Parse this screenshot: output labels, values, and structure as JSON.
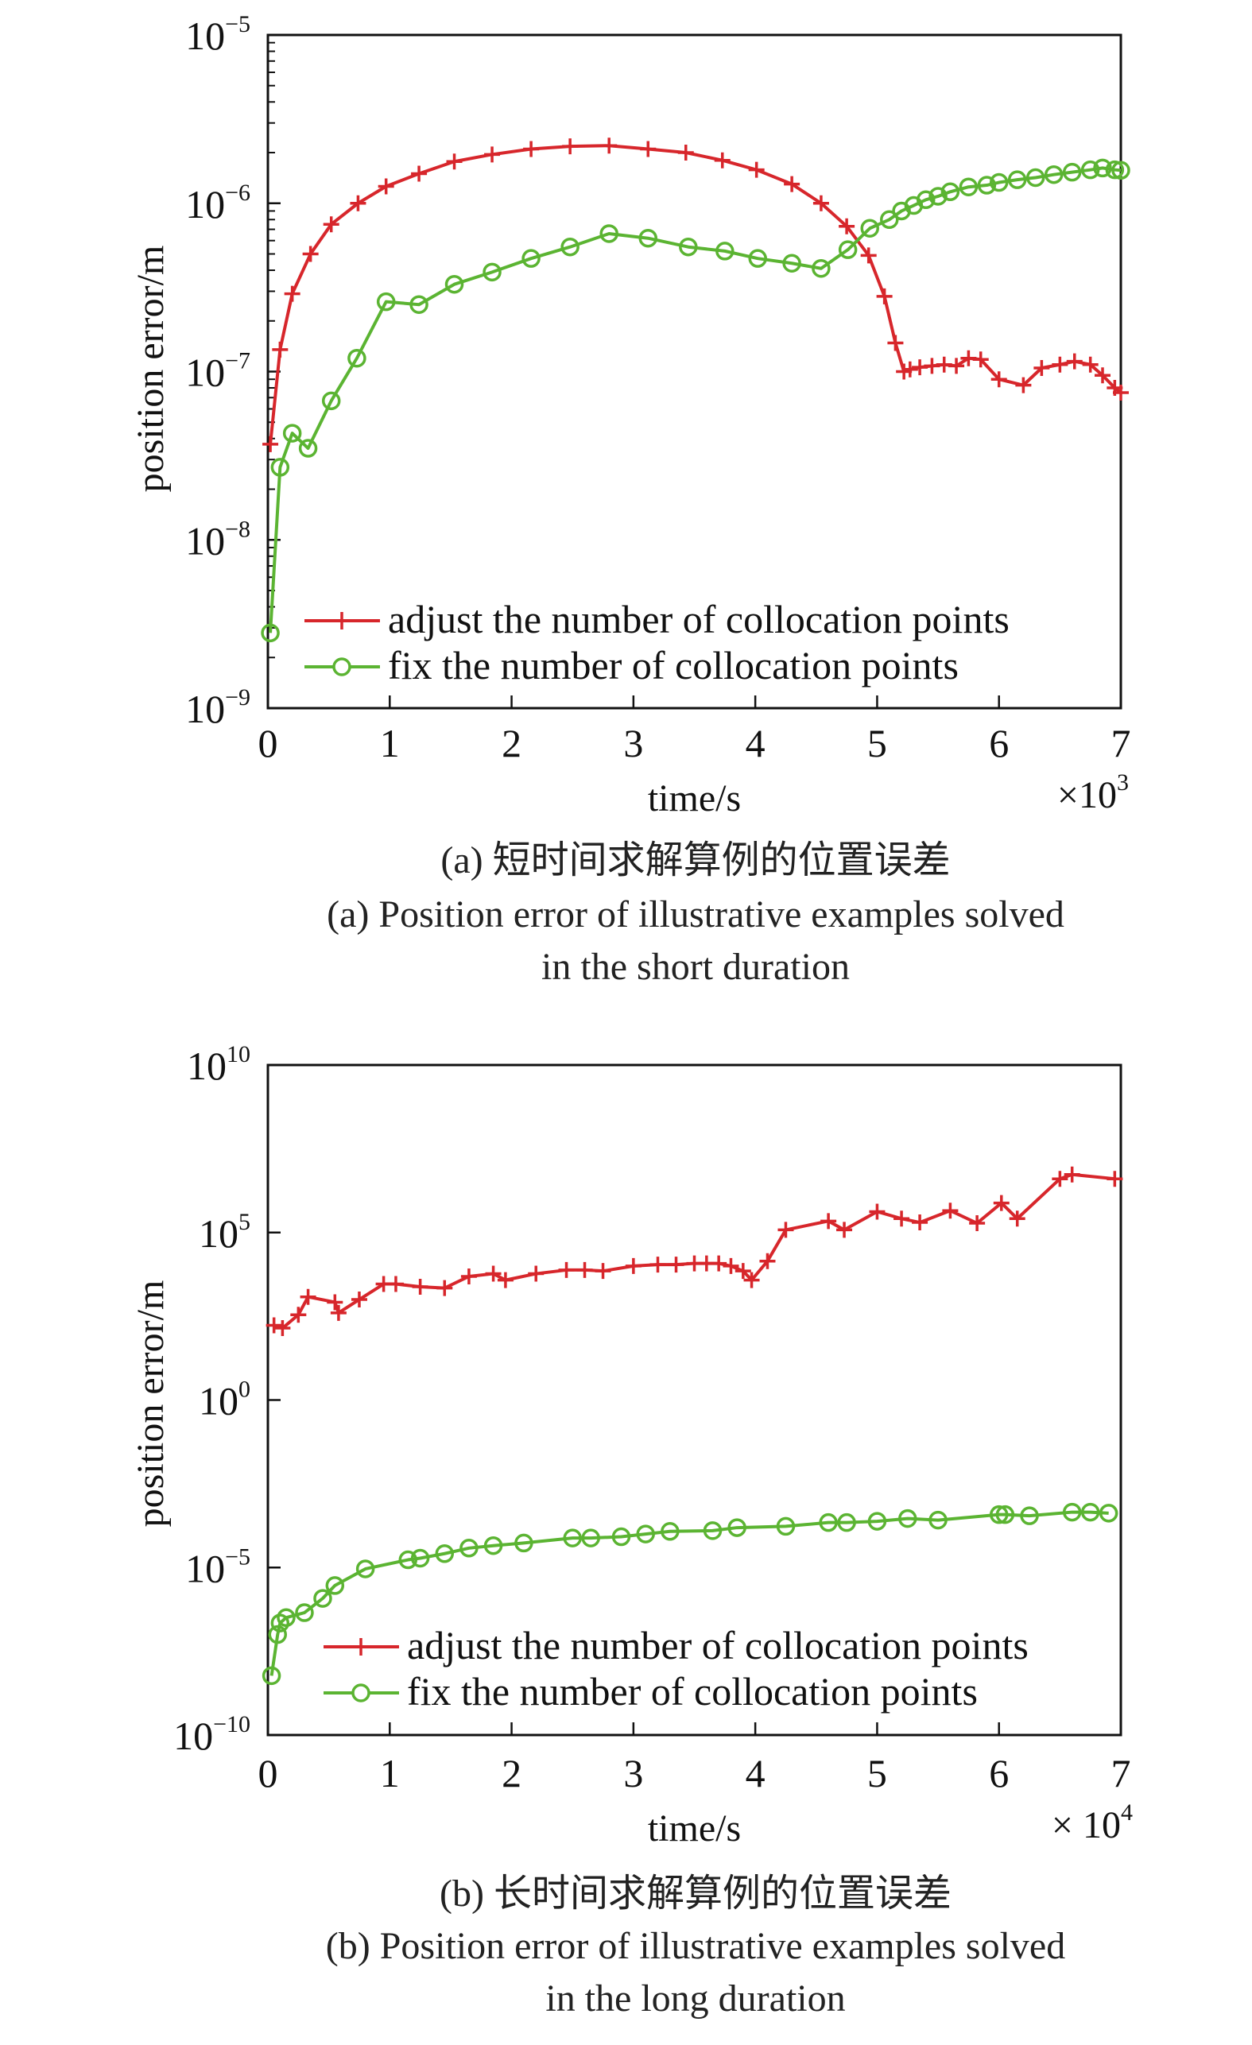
{
  "chart_data": [
    {
      "type": "line",
      "xlabel": "time/s",
      "x_multiplier": {
        "base": "×10",
        "exp": "3"
      },
      "ylabel": "position error/m",
      "yscale": "log",
      "xlim": [
        0,
        7
      ],
      "ylim": [
        1e-09,
        1e-05
      ],
      "grid": false,
      "legend_position": "bottom-left",
      "x_ticks": [
        "0",
        "1",
        "2",
        "3",
        "4",
        "5",
        "6",
        "7"
      ],
      "y_ticks": [
        {
          "base": "10",
          "exp": "−9",
          "v": 1e-09
        },
        {
          "base": "10",
          "exp": "−8",
          "v": 1e-08
        },
        {
          "base": "10",
          "exp": "−7",
          "v": 1e-07
        },
        {
          "base": "10",
          "exp": "−6",
          "v": 1e-06
        },
        {
          "base": "10",
          "exp": "−5",
          "v": 1e-05
        }
      ],
      "caption_cn": "(a) 短时间求解算例的位置误差",
      "caption_en": [
        "(a) Position error of illustrative examples solved",
        "in the short duration"
      ],
      "series": [
        {
          "name": "adjust the number of collocation points",
          "color": "#d7262b",
          "marker": "plus",
          "x": [
            0.02,
            0.1,
            0.2,
            0.35,
            0.52,
            0.74,
            0.97,
            1.24,
            1.53,
            1.84,
            2.16,
            2.48,
            2.8,
            3.12,
            3.43,
            3.73,
            4.01,
            4.3,
            4.54,
            4.75,
            4.93,
            5.06,
            5.15,
            5.22,
            5.27,
            5.35,
            5.45,
            5.55,
            5.65,
            5.75,
            5.85,
            6.0,
            6.2,
            6.35,
            6.5,
            6.62,
            6.75,
            6.85,
            6.95,
            7.0
          ],
          "y": [
            3.7e-08,
            1.35e-07,
            2.9e-07,
            5e-07,
            7.5e-07,
            1e-06,
            1.26e-06,
            1.5e-06,
            1.77e-06,
            1.95e-06,
            2.1e-06,
            2.18e-06,
            2.2e-06,
            2.1e-06,
            2e-06,
            1.8e-06,
            1.58e-06,
            1.3e-06,
            1e-06,
            7.3e-07,
            4.9e-07,
            2.8e-07,
            1.48e-07,
            1e-07,
            1.03e-07,
            1.06e-07,
            1.08e-07,
            1.1e-07,
            1.08e-07,
            1.2e-07,
            1.18e-07,
            9e-08,
            8.3e-08,
            1.05e-07,
            1.1e-07,
            1.15e-07,
            1.1e-07,
            9.5e-08,
            8e-08,
            7.5e-08
          ]
        },
        {
          "name": "fix the number of collocation points",
          "color": "#5bb432",
          "marker": "circle",
          "x": [
            0.02,
            0.1,
            0.2,
            0.33,
            0.52,
            0.73,
            0.97,
            1.24,
            1.53,
            1.84,
            2.16,
            2.48,
            2.8,
            3.12,
            3.45,
            3.75,
            4.02,
            4.3,
            4.54,
            4.76,
            4.94,
            5.1,
            5.2,
            5.3,
            5.4,
            5.5,
            5.6,
            5.75,
            5.9,
            6.0,
            6.15,
            6.3,
            6.45,
            6.6,
            6.75,
            6.85,
            6.95,
            7.0
          ],
          "y": [
            2.8e-09,
            2.7e-08,
            4.3e-08,
            3.5e-08,
            6.7e-08,
            1.2e-07,
            2.6e-07,
            2.5e-07,
            3.3e-07,
            3.9e-07,
            4.7e-07,
            5.5e-07,
            6.6e-07,
            6.2e-07,
            5.5e-07,
            5.2e-07,
            4.7e-07,
            4.4e-07,
            4.1e-07,
            5.3e-07,
            7.1e-07,
            8e-07,
            9e-07,
            9.7e-07,
            1.05e-06,
            1.1e-06,
            1.17e-06,
            1.25e-06,
            1.28e-06,
            1.33e-06,
            1.38e-06,
            1.42e-06,
            1.48e-06,
            1.53e-06,
            1.58e-06,
            1.62e-06,
            1.58e-06,
            1.57e-06
          ]
        }
      ]
    },
    {
      "type": "line",
      "xlabel": "time/s",
      "x_multiplier": {
        "base": "× 10",
        "exp": "4"
      },
      "ylabel": "position error/m",
      "yscale": "log",
      "xlim": [
        0,
        7
      ],
      "ylim": [
        1e-10,
        10000000000.0
      ],
      "grid": false,
      "legend_position": "bottom-left",
      "x_ticks": [
        "0",
        "1",
        "2",
        "3",
        "4",
        "5",
        "6",
        "7"
      ],
      "y_ticks": [
        {
          "base": "10",
          "exp": "−10",
          "v": 1e-10
        },
        {
          "base": "10",
          "exp": "−5",
          "v": 1e-05
        },
        {
          "base": "10",
          "exp": "0",
          "v": 1
        },
        {
          "base": "10",
          "exp": "5",
          "v": 100000.0
        },
        {
          "base": "10",
          "exp": "10",
          "v": 10000000000.0
        }
      ],
      "caption_cn": "(b) 长时间求解算例的位置误差",
      "caption_en": [
        "(b) Position error of illustrative examples solved",
        "in the long duration"
      ],
      "series": [
        {
          "name": "adjust the number of collocation points",
          "color": "#d7262b",
          "marker": "plus",
          "x": [
            0.05,
            0.12,
            0.25,
            0.33,
            0.55,
            0.58,
            0.75,
            0.95,
            1.05,
            1.25,
            1.45,
            1.65,
            1.85,
            1.95,
            2.2,
            2.45,
            2.6,
            2.75,
            3.0,
            3.2,
            3.35,
            3.5,
            3.6,
            3.7,
            3.8,
            3.9,
            3.97,
            4.1,
            4.25,
            4.6,
            4.73,
            5.0,
            5.2,
            5.35,
            5.6,
            5.82,
            6.02,
            6.15,
            6.5,
            6.6,
            6.95
          ],
          "y": [
            170.0,
            140.0,
            350.0,
            1200.0,
            830.0,
            400.0,
            1000.0,
            2900.0,
            2900.0,
            2400.0,
            2200.0,
            4900.0,
            5900.0,
            3800.0,
            5900.0,
            7600.0,
            7600.0,
            7100.0,
            10000.0,
            11000.0,
            11000.0,
            12000.0,
            12000.0,
            12000.0,
            10000.0,
            7100.0,
            3800.0,
            14000.0,
            120000.0,
            220000.0,
            120000.0,
            420000.0,
            260000.0,
            200000.0,
            450000.0,
            190000.0,
            760000.0,
            260000.0,
            4000000.0,
            5400000.0,
            4000000.0
          ]
        },
        {
          "name": "fix the number of collocation points",
          "color": "#5bb432",
          "marker": "circle",
          "x": [
            0.03,
            0.08,
            0.1,
            0.15,
            0.3,
            0.45,
            0.55,
            0.8,
            1.15,
            1.25,
            1.45,
            1.65,
            1.85,
            2.1,
            2.5,
            2.65,
            2.9,
            3.1,
            3.3,
            3.65,
            3.85,
            4.25,
            4.6,
            4.75,
            5.0,
            5.25,
            5.5,
            6.0,
            6.05,
            6.25,
            6.6,
            6.75,
            6.9
          ],
          "y": [
            5.9e-09,
            1e-07,
            2.2e-07,
            3.2e-07,
            4.5e-07,
            1.2e-06,
            2.9e-06,
            9.1e-06,
            1.7e-05,
            1.9e-05,
            2.6e-05,
            3.8e-05,
            4.5e-05,
            5.4e-05,
            7.6e-05,
            7.6e-05,
            8.3e-05,
            0.0001,
            0.00012,
            0.000126,
            0.000155,
            0.00017,
            0.00022,
            0.00022,
            0.00024,
            0.00029,
            0.00026,
            0.00038,
            0.00038,
            0.00035,
            0.00045,
            0.00045,
            0.00042
          ]
        }
      ]
    }
  ]
}
